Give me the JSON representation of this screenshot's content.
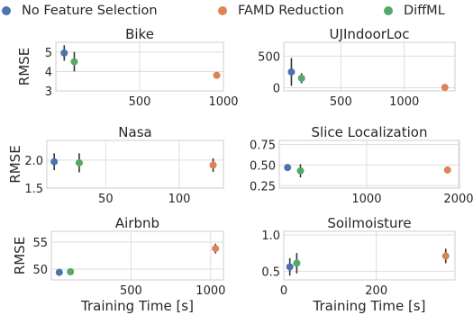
{
  "legend": {
    "items": [
      {
        "name": "No Feature Selection",
        "color": "#4c72b0"
      },
      {
        "name": "FAMD Reduction",
        "color": "#dd8452"
      },
      {
        "name": "DiffML",
        "color": "#55a868"
      }
    ]
  },
  "chart_data": [
    {
      "type": "scatter",
      "title": "Bike",
      "xlabel": "",
      "ylabel": "RMSE",
      "xlim": [
        0,
        1000
      ],
      "ylim": [
        3,
        5.5
      ],
      "xticks": [
        500,
        1000
      ],
      "yticks": [
        3,
        4,
        5
      ],
      "grid": true,
      "series": [
        {
          "name": "No Feature Selection",
          "x": [
            50
          ],
          "y": [
            4.95
          ],
          "yerr": [
            0.4
          ]
        },
        {
          "name": "FAMD Reduction",
          "x": [
            960
          ],
          "y": [
            3.8
          ],
          "yerr": [
            0.12
          ]
        },
        {
          "name": "DiffML",
          "x": [
            110
          ],
          "y": [
            4.5
          ],
          "yerr": [
            0.5
          ]
        }
      ]
    },
    {
      "type": "scatter",
      "title": "UJIndoorLoc",
      "xlabel": "",
      "ylabel": "",
      "xlim": [
        50,
        1400
      ],
      "ylim": [
        -50,
        720
      ],
      "xticks": [
        500,
        1000
      ],
      "yticks": [
        0,
        500
      ],
      "grid": true,
      "series": [
        {
          "name": "No Feature Selection",
          "x": [
            110
          ],
          "y": [
            250
          ],
          "yerr": [
            220
          ]
        },
        {
          "name": "FAMD Reduction",
          "x": [
            1320
          ],
          "y": [
            5
          ],
          "yerr": [
            40
          ]
        },
        {
          "name": "DiffML",
          "x": [
            190
          ],
          "y": [
            150
          ],
          "yerr": [
            80
          ]
        }
      ]
    },
    {
      "type": "scatter",
      "title": "Nasa",
      "xlabel": "",
      "ylabel": "RMSE",
      "xlim": [
        10,
        130
      ],
      "ylim": [
        1.5,
        2.35
      ],
      "xticks": [
        50,
        100
      ],
      "yticks": [
        1.5,
        2.0
      ],
      "grid": true,
      "series": [
        {
          "name": "No Feature Selection",
          "x": [
            15
          ],
          "y": [
            1.97
          ],
          "yerr": [
            0.15
          ]
        },
        {
          "name": "FAMD Reduction",
          "x": [
            123
          ],
          "y": [
            1.91
          ],
          "yerr": [
            0.12
          ]
        },
        {
          "name": "DiffML",
          "x": [
            32
          ],
          "y": [
            1.95
          ],
          "yerr": [
            0.17
          ]
        }
      ]
    },
    {
      "type": "scatter",
      "title": "Slice Localization",
      "xlabel": "",
      "ylabel": "",
      "xlim": [
        50,
        2010
      ],
      "ylim": [
        0.22,
        0.8
      ],
      "xticks": [
        1000,
        2000
      ],
      "yticks": [
        0.25,
        0.5,
        0.75
      ],
      "grid": true,
      "series": [
        {
          "name": "No Feature Selection",
          "x": [
            140
          ],
          "y": [
            0.47
          ],
          "yerr": [
            0.04
          ]
        },
        {
          "name": "FAMD Reduction",
          "x": [
            1880
          ],
          "y": [
            0.44
          ],
          "yerr": [
            0.02
          ]
        },
        {
          "name": "DiffML",
          "x": [
            280
          ],
          "y": [
            0.43
          ],
          "yerr": [
            0.08
          ]
        }
      ]
    },
    {
      "type": "scatter",
      "title": "Airbnb",
      "xlabel": "Training Time [s]",
      "ylabel": "RMSE",
      "xlim": [
        0,
        1080
      ],
      "ylim": [
        48,
        57
      ],
      "xticks": [
        500,
        1000
      ],
      "yticks": [
        50,
        55
      ],
      "grid": true,
      "series": [
        {
          "name": "No Feature Selection",
          "x": [
            50
          ],
          "y": [
            49.4
          ],
          "yerr": [
            0.5
          ]
        },
        {
          "name": "FAMD Reduction",
          "x": [
            1030
          ],
          "y": [
            53.8
          ],
          "yerr": [
            0.9
          ]
        },
        {
          "name": "DiffML",
          "x": [
            120
          ],
          "y": [
            49.5
          ],
          "yerr": [
            0.6
          ]
        }
      ]
    },
    {
      "type": "scatter",
      "title": "Soilmoisture",
      "xlabel": "Training Time [s]",
      "ylabel": "",
      "xlim": [
        0,
        370
      ],
      "ylim": [
        0.38,
        1.05
      ],
      "xticks": [
        0,
        200
      ],
      "yticks": [
        0.5,
        1.0
      ],
      "grid": true,
      "series": [
        {
          "name": "No Feature Selection",
          "x": [
            13
          ],
          "y": [
            0.56
          ],
          "yerr": [
            0.12
          ]
        },
        {
          "name": "FAMD Reduction",
          "x": [
            350
          ],
          "y": [
            0.71
          ],
          "yerr": [
            0.1
          ]
        },
        {
          "name": "DiffML",
          "x": [
            28
          ],
          "y": [
            0.61
          ],
          "yerr": [
            0.14
          ]
        }
      ]
    }
  ]
}
